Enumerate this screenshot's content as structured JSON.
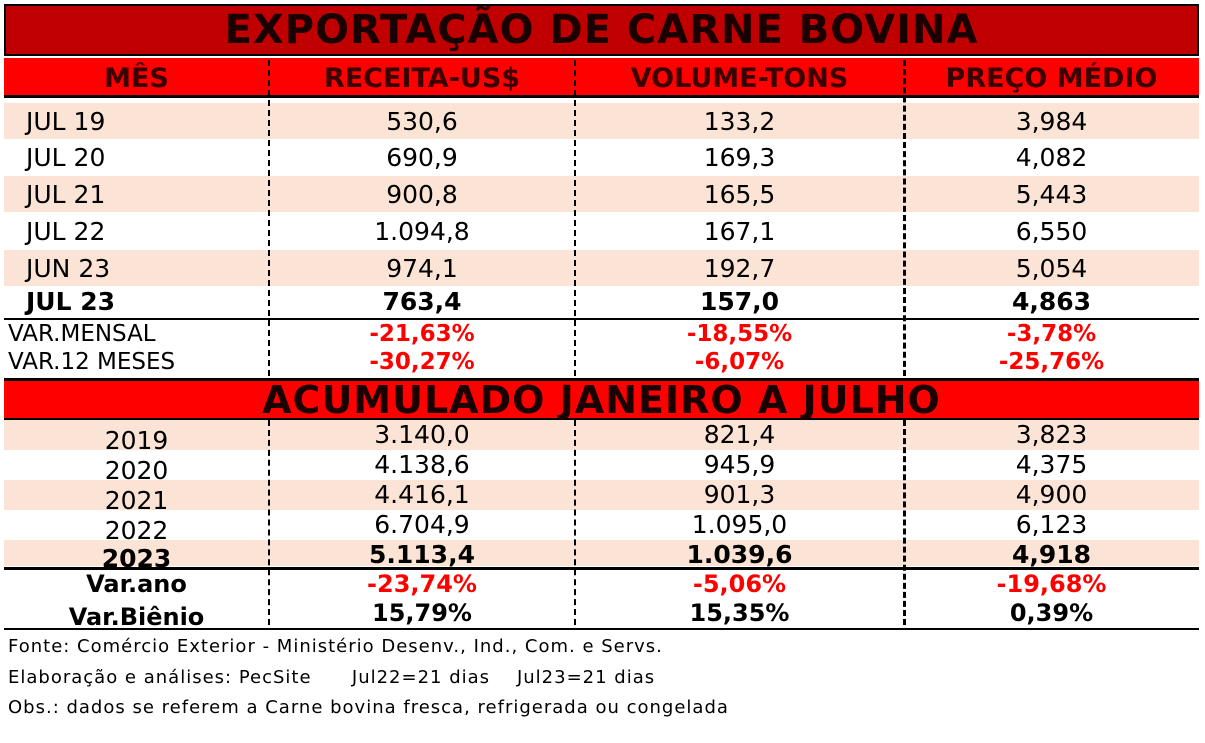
{
  "title": "EXPORTAÇÃO DE CARNE BOVINA",
  "headers": [
    "MÊS",
    "RECEITA-US$",
    "VOLUME-TONS",
    "PREÇO MÉDIO"
  ],
  "monthly_rows": [
    {
      "mes": "JUL 19",
      "receita": "530,6",
      "volume": "133,2",
      "preco": "3,984"
    },
    {
      "mes": "JUL 20",
      "receita": "690,9",
      "volume": "169,3",
      "preco": "4,082"
    },
    {
      "mes": "JUL 21",
      "receita": "900,8",
      "volume": "165,5",
      "preco": "5,443"
    },
    {
      "mes": "JUL 22",
      "receita": "1.094,8",
      "volume": "167,1",
      "preco": "6,550"
    },
    {
      "mes": "JUN 23",
      "receita": "974,1",
      "volume": "192,7",
      "preco": "5,054"
    },
    {
      "mes": "JUL 23",
      "receita": "763,4",
      "volume": "157,0",
      "preco": "4,863"
    }
  ],
  "var_mensal": {
    "label": "VAR.MENSAL",
    "receita": "-21,63%",
    "volume": "-18,55%",
    "preco": "-3,78%"
  },
  "var_12": {
    "label": "VAR.12 MESES",
    "receita": "-30,27%",
    "volume": "-6,07%",
    "preco": "-25,76%"
  },
  "section_title": "ACUMULADO JANEIRO A JULHO",
  "annual_rows": [
    {
      "ano": "2019",
      "receita": "3.140,0",
      "volume": "821,4",
      "preco": "3,823"
    },
    {
      "ano": "2020",
      "receita": "4.138,6",
      "volume": "945,9",
      "preco": "4,375"
    },
    {
      "ano": "2021",
      "receita": "4.416,1",
      "volume": "901,3",
      "preco": "4,900"
    },
    {
      "ano": "2022",
      "receita": "6.704,9",
      "volume": "1.095,0",
      "preco": "6,123"
    },
    {
      "ano": "2023",
      "receita": "5.113,4",
      "volume": "1.039,6",
      "preco": "4,918"
    }
  ],
  "var_ano": {
    "label": "Var.ano",
    "receita": "-23,74%",
    "volume": "-5,06%",
    "preco": "-19,68%"
  },
  "var_bienio": {
    "label": "Var.Biênio",
    "receita": "15,79%",
    "volume": "15,35%",
    "preco": "0,39%"
  },
  "footer": {
    "fonte": "Fonte: Comércio Exterior - Ministério Desenv., Ind., Com. e Servs.",
    "elaboracao": "Elaboração e análises: PecSite      Jul22=21 dias    Jul23=21 dias",
    "obs": "Obs.: dados se referem a Carne bovina fresca, refrigerada ou congelada"
  },
  "colors": {
    "title_bg": "#c00000",
    "header_bg": "#ff0000",
    "row_shade": "#fbe4d5",
    "negative": "#ff0000"
  }
}
